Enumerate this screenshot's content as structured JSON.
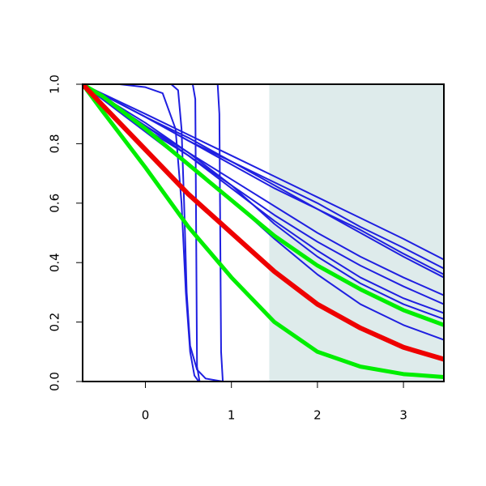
{
  "chart_data": {
    "type": "line",
    "xlim": [
      -0.73,
      3.47
    ],
    "ylim": [
      0,
      1
    ],
    "xticks": [
      0,
      1,
      2,
      3
    ],
    "yticks": [
      {
        "value": 0,
        "label": "0.0"
      },
      0.2,
      0.4,
      0.6,
      0.8,
      {
        "value": 1,
        "label": "1.0"
      }
    ],
    "shaded_region": {
      "x": [
        1.44,
        3.47
      ],
      "color": "#deebeb"
    },
    "series": [
      {
        "color": "#1f1fe0",
        "width": 2,
        "x": [
          -0.73,
          0,
          0.5,
          1,
          1.5,
          2,
          2.5,
          3,
          3.47
        ],
        "values": [
          1,
          0.9,
          0.83,
          0.76,
          0.69,
          0.62,
          0.55,
          0.48,
          0.41
        ]
      },
      {
        "color": "#1f1fe0",
        "width": 2,
        "x": [
          -0.73,
          0,
          0.5,
          1,
          1.5,
          2,
          2.5,
          3,
          3.47
        ],
        "values": [
          1,
          0.89,
          0.82,
          0.74,
          0.67,
          0.6,
          0.52,
          0.45,
          0.38
        ]
      },
      {
        "color": "#1f1fe0",
        "width": 2,
        "x": [
          -0.73,
          0,
          0.5,
          1,
          1.5,
          2,
          2.5,
          3,
          3.47
        ],
        "values": [
          1,
          0.89,
          0.81,
          0.74,
          0.66,
          0.58,
          0.51,
          0.43,
          0.36
        ]
      },
      {
        "color": "#1f1fe0",
        "width": 2,
        "x": [
          -0.73,
          0,
          0.5,
          1,
          1.5,
          2,
          2.5,
          3,
          3.47
        ],
        "values": [
          1,
          0.89,
          0.81,
          0.73,
          0.65,
          0.58,
          0.5,
          0.42,
          0.35
        ]
      },
      {
        "color": "#1f1fe0",
        "width": 2,
        "x": [
          -0.73,
          0,
          0.5,
          1,
          1.5,
          2,
          2.5,
          3,
          3.47
        ],
        "values": [
          1,
          0.86,
          0.77,
          0.68,
          0.59,
          0.5,
          0.42,
          0.35,
          0.29
        ]
      },
      {
        "color": "#1f1fe0",
        "width": 2,
        "x": [
          -0.73,
          0,
          0.5,
          1,
          1.5,
          2,
          2.5,
          3,
          3.47
        ],
        "values": [
          1,
          0.85,
          0.76,
          0.66,
          0.56,
          0.47,
          0.39,
          0.32,
          0.26
        ]
      },
      {
        "color": "#1f1fe0",
        "width": 2,
        "x": [
          -0.73,
          0,
          0.5,
          1,
          1.5,
          2,
          2.5,
          3,
          3.47
        ],
        "values": [
          1,
          0.86,
          0.76,
          0.65,
          0.54,
          0.44,
          0.35,
          0.28,
          0.23
        ]
      },
      {
        "color": "#1f1fe0",
        "width": 2,
        "x": [
          -0.73,
          0,
          0.5,
          1,
          1.5,
          2,
          2.5,
          3,
          3.47
        ],
        "values": [
          1,
          0.87,
          0.77,
          0.66,
          0.53,
          0.42,
          0.33,
          0.26,
          0.21
        ]
      },
      {
        "color": "#1f1fe0",
        "width": 2,
        "x": [
          -0.73,
          0,
          0.5,
          1,
          1.5,
          2,
          2.5,
          3,
          3.47
        ],
        "values": [
          1,
          0.84,
          0.73,
          0.61,
          0.48,
          0.36,
          0.26,
          0.19,
          0.14
        ]
      },
      {
        "color": "#1f1fe0",
        "width": 2,
        "x": [
          -0.73,
          -0.3,
          0,
          0.2,
          0.35,
          0.42,
          0.47,
          0.52,
          0.57,
          0.62,
          3.47
        ],
        "values": [
          1,
          1,
          0.99,
          0.97,
          0.85,
          0.6,
          0.3,
          0.1,
          0.02,
          0,
          0
        ]
      },
      {
        "color": "#1f1fe0",
        "width": 2,
        "x": [
          -0.73,
          0.3,
          0.38,
          0.42,
          0.45,
          0.48,
          0.52,
          0.6,
          0.7,
          0.9,
          3.47
        ],
        "values": [
          1,
          1,
          0.98,
          0.85,
          0.6,
          0.3,
          0.12,
          0.04,
          0.01,
          0,
          0
        ]
      },
      {
        "color": "#1f1fe0",
        "width": 2,
        "x": [
          -0.73,
          0.55,
          0.58,
          0.6,
          0.63,
          3.47
        ],
        "values": [
          1,
          1,
          0.95,
          0.05,
          0,
          0
        ]
      },
      {
        "color": "#1f1fe0",
        "width": 2,
        "x": [
          -0.73,
          0.84,
          0.86,
          0.88,
          0.9,
          3.47
        ],
        "values": [
          1,
          1,
          0.9,
          0.1,
          0,
          0
        ]
      },
      {
        "color": "#00ee00",
        "width": 5,
        "x": [
          -0.73,
          -0.5,
          0,
          0.5,
          1,
          1.5,
          2,
          2.5,
          3,
          3.47
        ],
        "values": [
          1,
          0.96,
          0.85,
          0.73,
          0.61,
          0.49,
          0.39,
          0.31,
          0.24,
          0.19
        ]
      },
      {
        "color": "#00ee00",
        "width": 5,
        "x": [
          -0.73,
          -0.5,
          0,
          0.5,
          1,
          1.5,
          2,
          2.5,
          3,
          3.47
        ],
        "values": [
          1,
          0.91,
          0.72,
          0.52,
          0.35,
          0.2,
          0.1,
          0.05,
          0.025,
          0.015
        ]
      },
      {
        "color": "#ee0000",
        "width": 6,
        "x": [
          -0.73,
          -0.5,
          0,
          0.5,
          1,
          1.5,
          2,
          2.5,
          3,
          3.47
        ],
        "values": [
          1,
          0.93,
          0.78,
          0.63,
          0.5,
          0.37,
          0.26,
          0.18,
          0.115,
          0.075
        ]
      }
    ]
  }
}
